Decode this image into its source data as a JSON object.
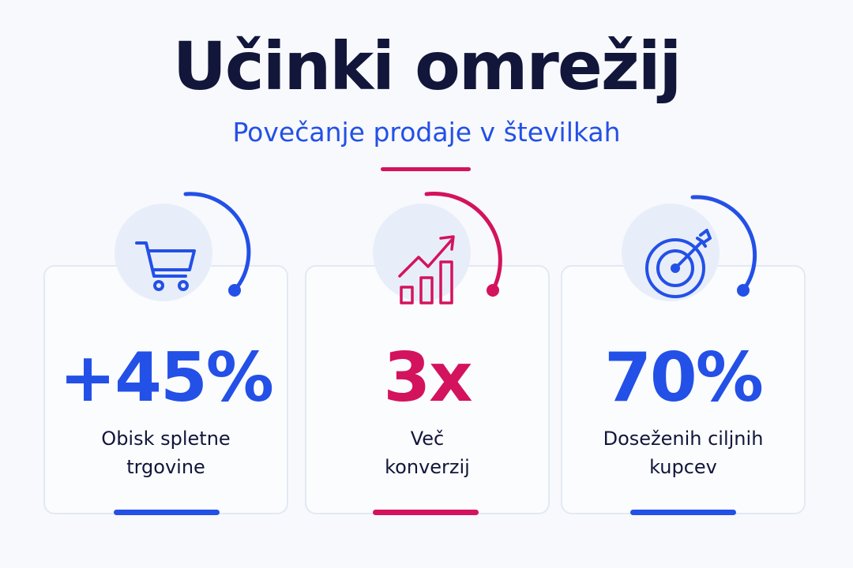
{
  "header": {
    "title": "Učinki omrežij",
    "subtitle": "Povečanje prodaje v številkah"
  },
  "colors": {
    "blue": "#2350e6",
    "magenta": "#d3135d",
    "navy": "#12163a"
  },
  "stats": [
    {
      "icon": "shopping-cart-icon",
      "value": "+45%",
      "label_line1": "Obisk spletne",
      "label_line2": "trgovine",
      "accent": "#2350e6"
    },
    {
      "icon": "growth-chart-icon",
      "value": "3x",
      "label_line1": "Več",
      "label_line2": "konverzij",
      "accent": "#d3135d"
    },
    {
      "icon": "target-icon",
      "value": "70%",
      "label_line1": "Doseženih ciljnih",
      "label_line2": "kupcev",
      "accent": "#2350e6"
    }
  ]
}
